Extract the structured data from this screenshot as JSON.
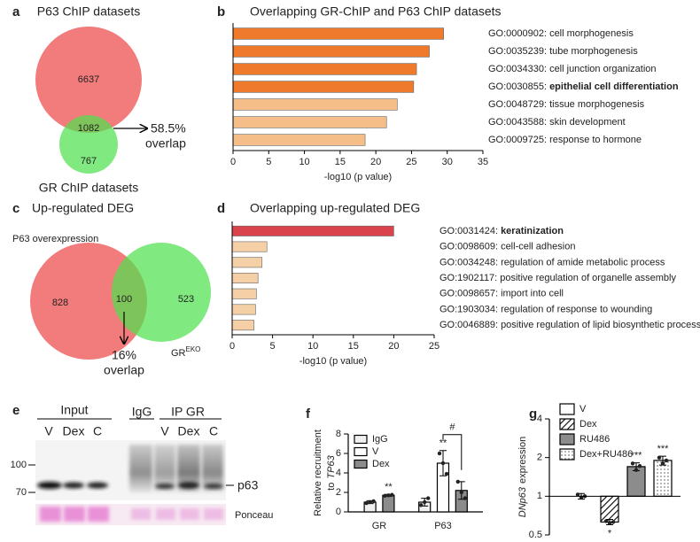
{
  "panel_labels": [
    "a",
    "b",
    "c",
    "d",
    "e",
    "f",
    "g"
  ],
  "venn_a": {
    "title": "P63 ChIP datasets",
    "left_count": 6637,
    "overlap_count": 1082,
    "right_count": 767,
    "overlap_percent": "58.5%",
    "overlap_word": "overlap",
    "right_label": "GR ChIP datasets"
  },
  "venn_c": {
    "title": "Up-regulated DEG",
    "left_label": "P63 overexpression",
    "left_count": 828,
    "overlap_count": 100,
    "right_count": 523,
    "right_label": "GR",
    "right_label_sup": "EKO",
    "overlap_percent": "16%",
    "overlap_word": "overlap"
  },
  "blot_e": {
    "input_label": "Input",
    "igg_label": "IgG",
    "ip_label": "IP GR",
    "lanes": [
      "V",
      "Dex",
      "C",
      "V",
      "Dex",
      "C"
    ],
    "markers": [
      100,
      70
    ],
    "band_label": "p63",
    "loading_label": "Ponceau"
  },
  "chart_data": [
    {
      "type": "bar",
      "orientation": "horizontal",
      "title": "Overlapping GR-ChIP and P63 ChIP datasets",
      "categories": [
        {
          "id": "GO:0000902:",
          "name": "cell morphogenesis"
        },
        {
          "id": "GO:0035239:",
          "name": "tube morphogenesis"
        },
        {
          "id": "GO:0034330:",
          "name": "cell junction organization"
        },
        {
          "id": "GO:0030855:",
          "name": "epithelial cell differentiation"
        },
        {
          "id": "GO:0048729:",
          "name": "tissue morphogenesis"
        },
        {
          "id": "GO:0043588:",
          "name": "skin development"
        },
        {
          "id": "GO:0009725:",
          "name": "response to hormone"
        }
      ],
      "bold": [
        false,
        false,
        false,
        true,
        false,
        false,
        false
      ],
      "values": [
        29.5,
        27.5,
        25.7,
        25.3,
        23,
        21.5,
        18.5
      ],
      "colors": [
        "#ef7a2c",
        "#ef7a2c",
        "#ef7a2c",
        "#ef7a2c",
        "#f5bd88",
        "#f5bd88",
        "#f5bd88"
      ],
      "xlabel": "-log10 (p value)",
      "xlim": [
        0,
        35
      ],
      "xticks": [
        0,
        5,
        10,
        15,
        20,
        25,
        30,
        35
      ]
    },
    {
      "type": "bar",
      "orientation": "horizontal",
      "title": "Overlapping up-regulated DEG",
      "categories": [
        {
          "id": "GO:0031424:",
          "name": "keratinization"
        },
        {
          "id": "GO:0098609:",
          "name": "cell-cell adhesion"
        },
        {
          "id": "GO:0034248:",
          "name": "regulation of amide metabolic process"
        },
        {
          "id": "GO:1902117:",
          "name": "positive regulation of organelle assembly"
        },
        {
          "id": "GO:0098657:",
          "name": "import into cell"
        },
        {
          "id": "GO:1903034:",
          "name": "regulation of response to wounding"
        },
        {
          "id": "GO:0046889:",
          "name": "positive regulation of lipid biosynthetic process"
        }
      ],
      "bold": [
        true,
        false,
        false,
        false,
        false,
        false,
        false
      ],
      "values": [
        20,
        4.3,
        3.7,
        3.2,
        3.0,
        2.9,
        2.7
      ],
      "colors": [
        "#d9434b",
        "#f5cfa6",
        "#f5cfa6",
        "#f5cfa6",
        "#f5cfa6",
        "#f5cfa6",
        "#f5cfa6"
      ],
      "xlabel": "-log10 (p value)",
      "xlim": [
        0,
        25
      ],
      "xticks": [
        0,
        5,
        10,
        15,
        20,
        25
      ]
    },
    {
      "type": "bar",
      "orientation": "vertical",
      "ylabel": {
        "line1": "Relative recruitment",
        "line2": "to",
        "italic": "TP63"
      },
      "categories": [
        "GR",
        "P63"
      ],
      "series": [
        {
          "name": "IgG",
          "color": "#f0f0f0",
          "values": [
            1.0,
            1.0
          ],
          "errors": [
            0.15,
            0.4
          ],
          "points": [
            [
              0.9,
              1.0,
              1.1
            ],
            [
              0.7,
              1.0,
              1.4
            ]
          ]
        },
        {
          "name": "V",
          "color": "#ffffff",
          "values": [
            null,
            5.0
          ],
          "errors": [
            null,
            1.3
          ],
          "points": [
            null,
            [
              6.0,
              5.0,
              3.9
            ]
          ]
        },
        {
          "name": "Dex",
          "color": "#8c8c8c",
          "values": [
            1.7,
            2.2
          ],
          "errors": [
            0.1,
            0.9
          ],
          "points": [
            [
              1.65,
              1.7,
              1.75
            ],
            [
              3.1,
              2.0,
              1.4
            ]
          ]
        }
      ],
      "annotations": [
        {
          "text": "**",
          "category": 0,
          "series": 2
        },
        {
          "text": "**",
          "category": 1,
          "series": 1
        }
      ],
      "brackets": [
        {
          "text": "#",
          "category": 1,
          "series": [
            1,
            2
          ]
        }
      ],
      "ylim": [
        0,
        8
      ],
      "yticks": [
        0,
        2,
        4,
        6,
        8
      ]
    },
    {
      "type": "bar",
      "orientation": "vertical",
      "log": true,
      "ylabel": {
        "italic": "DNp63",
        "text": "expression"
      },
      "categories": [
        "V",
        "Dex",
        "RU486",
        "Dex+RU486"
      ],
      "values": [
        1.0,
        0.63,
        1.7,
        1.9
      ],
      "errors": [
        0.05,
        0.03,
        0.12,
        0.15
      ],
      "points": [
        [
          1.03,
          0.98,
          1.0
        ],
        [
          0.64,
          0.62,
          0.63
        ],
        [
          1.8,
          1.6,
          1.72
        ],
        [
          2.0,
          1.8,
          1.9
        ]
      ],
      "colors": [
        "#ffffff",
        "#ffffff",
        "#8c8c8c",
        "#ffffff"
      ],
      "patterns": [
        null,
        "hatch",
        null,
        "dots"
      ],
      "annotations": [
        null,
        "*",
        "***",
        "***"
      ],
      "ylim": [
        0.5,
        4
      ],
      "yticks": [
        0.5,
        1,
        2,
        4
      ]
    }
  ]
}
